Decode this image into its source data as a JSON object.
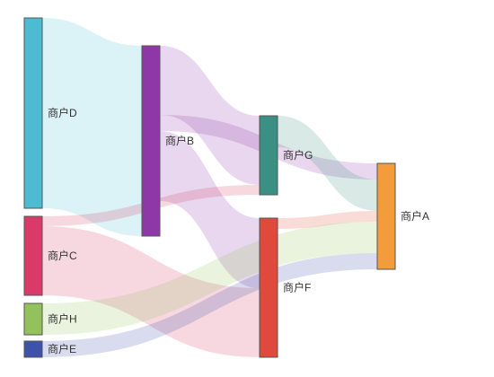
{
  "chart_data": {
    "type": "sankey",
    "nodes": [
      {
        "id": "D",
        "name": "商户D",
        "color": "#4dbcd0"
      },
      {
        "id": "C",
        "name": "商户C",
        "color": "#d93a67"
      },
      {
        "id": "H",
        "name": "商户H",
        "color": "#93c25c"
      },
      {
        "id": "E",
        "name": "商户E",
        "color": "#3d52a8"
      },
      {
        "id": "B",
        "name": "商户B",
        "color": "#8e38a8"
      },
      {
        "id": "G",
        "name": "商户G",
        "color": "#3a9083"
      },
      {
        "id": "F",
        "name": "商户F",
        "color": "#df4a3c"
      },
      {
        "id": "A",
        "name": "商户A",
        "color": "#f39c3a"
      }
    ],
    "links": [
      {
        "source": "D",
        "target": "B",
        "value": 212
      },
      {
        "source": "B",
        "target": "G",
        "value": 77
      },
      {
        "source": "B",
        "target": "A",
        "value": 18
      },
      {
        "source": "B",
        "target": "F",
        "value": 10
      },
      {
        "source": "B",
        "target": "F",
        "value": 68
      },
      {
        "source": "G",
        "target": "A",
        "value": 17
      },
      {
        "source": "G",
        "target": "A",
        "value": 18
      },
      {
        "source": "C",
        "target": "G",
        "value": 11
      },
      {
        "source": "C",
        "target": "F",
        "value": 77
      },
      {
        "source": "F",
        "target": "A",
        "value": 12
      },
      {
        "source": "H",
        "target": "A",
        "value": 35
      },
      {
        "source": "E",
        "target": "A",
        "value": 18
      }
    ]
  }
}
